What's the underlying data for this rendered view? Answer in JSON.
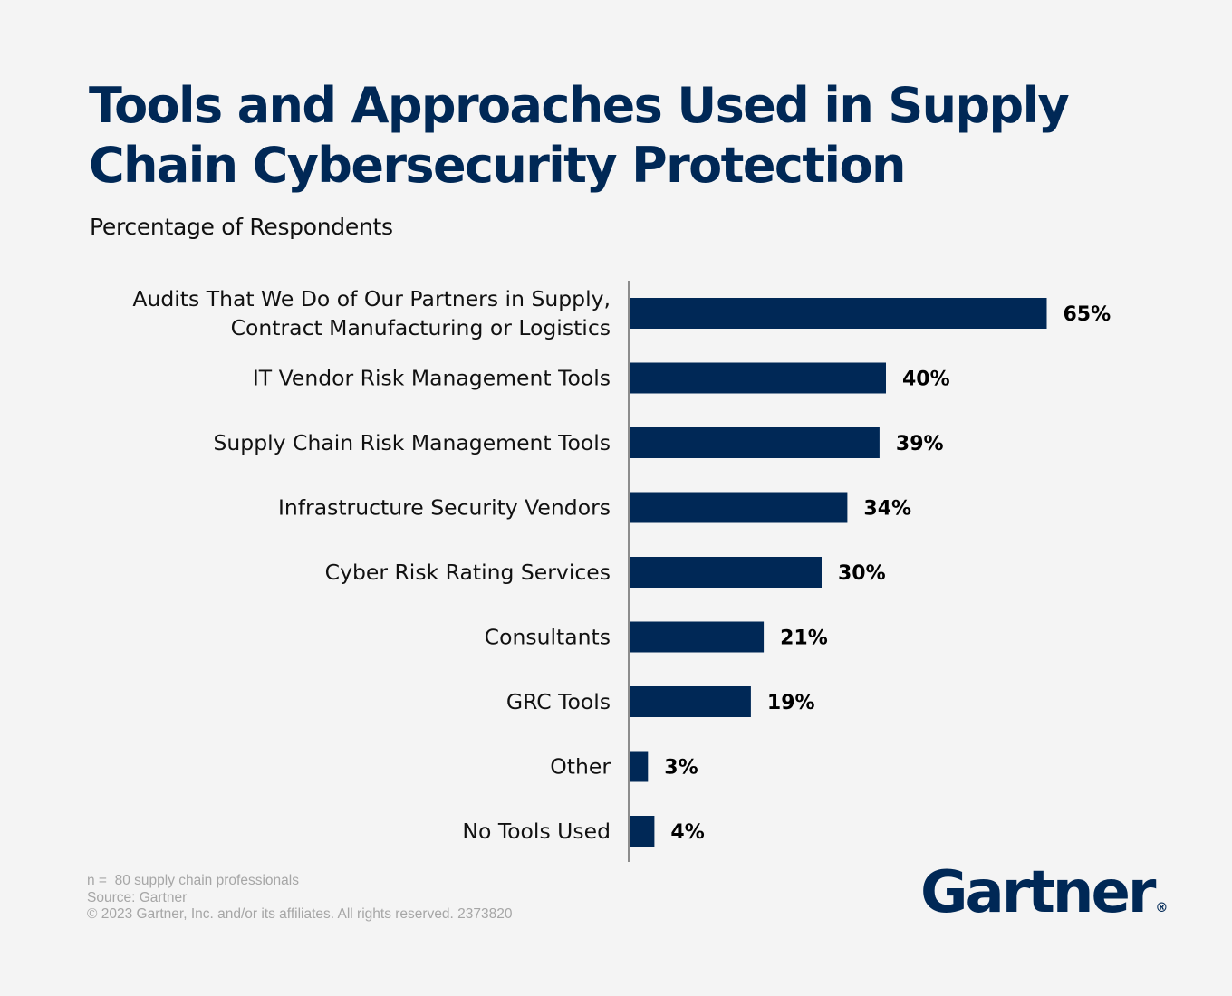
{
  "title": "Tools and Approaches Used in Supply Chain Cybersecurity Protection",
  "subtitle": "Percentage of Respondents",
  "chart_data": {
    "type": "bar",
    "orientation": "horizontal",
    "categories": [
      [
        "Audits That We Do of Our Partners in Supply,",
        "Contract Manufacturing or Logistics"
      ],
      [
        "IT Vendor Risk Management Tools"
      ],
      [
        "Supply Chain Risk Management Tools"
      ],
      [
        "Infrastructure Security Vendors"
      ],
      [
        "Cyber Risk Rating Services"
      ],
      [
        "Consultants"
      ],
      [
        "GRC Tools"
      ],
      [
        "Other"
      ],
      [
        "No Tools Used"
      ]
    ],
    "values": [
      65,
      40,
      39,
      34,
      30,
      21,
      19,
      3,
      4
    ],
    "value_labels": [
      "65%",
      "40%",
      "39%",
      "34%",
      "30%",
      "21%",
      "19%",
      "3%",
      "4%"
    ],
    "unit": "%",
    "xlim": [
      0,
      100
    ],
    "grid": false,
    "legend": "none",
    "bar_color": "#002856",
    "axis_color": "#8c8c8c"
  },
  "footnotes": [
    "n =  80 supply chain professionals",
    "Source: Gartner",
    "© 2023 Gartner, Inc. and/or its affiliates. All rights reserved. 2373820"
  ],
  "logo": {
    "text": "Gartner",
    "mark": "®",
    "color": "#002856"
  }
}
